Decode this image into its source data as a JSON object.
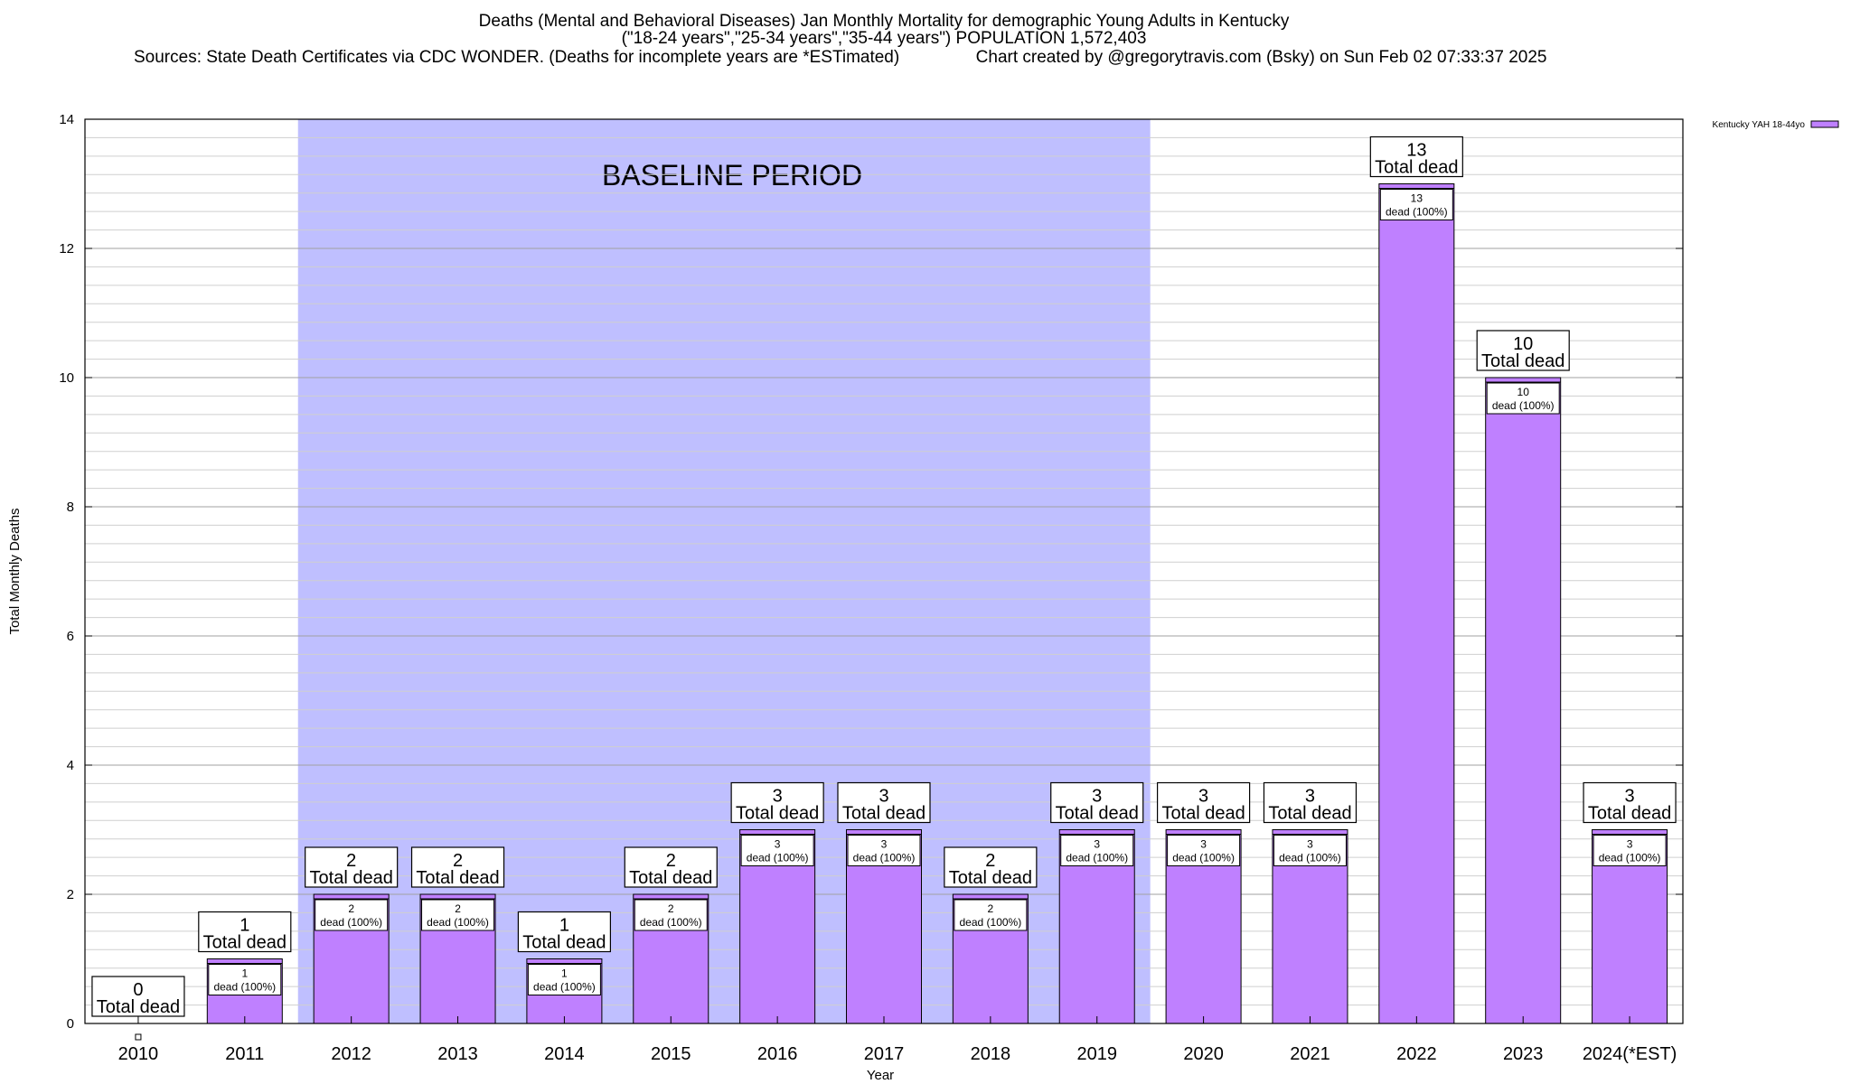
{
  "chart_data": {
    "type": "bar",
    "title": [
      "Deaths (Mental and Behavioral Diseases) Jan Monthly Mortality for demographic Young Adults in Kentucky",
      "(\"18-24 years\",\"25-34 years\",\"35-44 years\") POPULATION 1,572,403",
      "Sources: State Death Certificates via CDC WONDER. (Deaths for incomplete years are *ESTimated)                Chart created by @gregorytravis.com (Bsky) on Sun Feb 02 07:33:37 2025"
    ],
    "xlabel": "Year",
    "ylabel": "Total Monthly Deaths",
    "ylim": [
      0,
      14
    ],
    "yticks": [
      0,
      2,
      4,
      6,
      8,
      10,
      12,
      14
    ],
    "grid": true,
    "legend_position": "top-right",
    "categories": [
      "2010",
      "2011",
      "2012",
      "2013",
      "2014",
      "2015",
      "2016",
      "2017",
      "2018",
      "2019",
      "2020",
      "2021",
      "2022",
      "2023",
      "2024(*EST)"
    ],
    "series": [
      {
        "name": "Kentucky YAH 18-44yo",
        "color": "#bf80ff",
        "values": [
          0,
          1,
          2,
          2,
          1,
          2,
          3,
          3,
          2,
          3,
          3,
          3,
          13,
          10,
          3
        ]
      }
    ],
    "total_label_text": "Total dead",
    "inner_label_text": "dead (100%)",
    "baseline": {
      "label": "BASELINE PERIOD",
      "from_category": "2012",
      "to_category": "2019",
      "color": "#bfbfff"
    }
  }
}
